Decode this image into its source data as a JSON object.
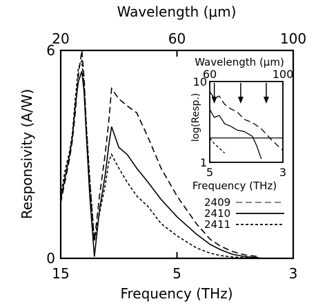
{
  "chart_data": {
    "type": "line",
    "main": {
      "xlabel": "Frequency  (THz)",
      "ylabel": "Responsivity  (A/W)",
      "top_xlabel": "Wavelength  (μm)",
      "ylim": [
        0,
        6
      ],
      "xlim": [
        15,
        3
      ],
      "x_scale": "reciprocal",
      "x_ticks": [
        15,
        5,
        3
      ],
      "y_ticks": [
        0,
        6
      ],
      "top_ticks": [
        20,
        60,
        100
      ],
      "top_tick_labels": [
        "20",
        "60",
        "100"
      ],
      "series": [
        {
          "name": "2409",
          "style": "long-dash",
          "x": [
            15,
            14,
            13,
            12.5,
            12,
            11.5,
            11,
            10.7,
            10.4,
            10.0,
            9.5,
            9.0,
            8.5,
            8.2,
            8.0,
            7.5,
            7.0,
            6.5,
            6.0,
            5.5,
            5.0,
            4.5,
            4.2,
            4.0,
            3.8,
            3.6,
            3.4
          ],
          "y": [
            1.6,
            2.2,
            2.9,
            3.4,
            4.2,
            5.3,
            6.0,
            5.2,
            3.7,
            2.2,
            0.5,
            1.8,
            3.0,
            4.0,
            4.9,
            4.6,
            4.4,
            4.2,
            3.5,
            2.6,
            1.8,
            1.0,
            0.55,
            0.35,
            0.2,
            0.1,
            0.05
          ]
        },
        {
          "name": "2410",
          "style": "solid",
          "x": [
            15,
            14,
            13,
            12.5,
            12,
            11.5,
            11,
            10.7,
            10.4,
            10.0,
            9.5,
            9.0,
            8.5,
            8.2,
            8.0,
            7.5,
            7.0,
            6.5,
            6.0,
            5.5,
            5.0,
            4.5,
            4.2,
            4.0,
            3.8,
            3.6,
            3.4
          ],
          "y": [
            1.7,
            2.3,
            3.0,
            3.5,
            4.4,
            5.1,
            5.4,
            4.8,
            3.5,
            1.8,
            0.05,
            1.4,
            2.4,
            3.3,
            3.8,
            3.2,
            3.0,
            2.6,
            2.2,
            1.7,
            1.2,
            0.7,
            0.4,
            0.25,
            0.12,
            0.05,
            0.02
          ]
        },
        {
          "name": "2411",
          "style": "short-dash",
          "x": [
            15,
            14,
            13,
            12.5,
            12,
            11.5,
            11,
            10.7,
            10.4,
            10.0,
            9.5,
            9.0,
            8.5,
            8.2,
            8.0,
            7.5,
            7.0,
            6.5,
            6.0,
            5.5,
            5.0,
            4.5,
            4.2,
            4.0,
            3.8,
            3.6,
            3.4
          ],
          "y": [
            1.8,
            2.5,
            3.1,
            3.6,
            4.6,
            5.5,
            5.7,
            5.0,
            3.8,
            2.3,
            0.5,
            1.3,
            2.1,
            2.8,
            3.0,
            2.6,
            2.2,
            1.8,
            1.5,
            1.0,
            0.65,
            0.3,
            0.15,
            0.08,
            0.04,
            0.02,
            0.01
          ]
        }
      ]
    },
    "inset": {
      "xlabel": "Frequency  (THz)",
      "ylabel": "log(Resp.)",
      "top_xlabel": "Wavelength  (μm)",
      "x_ticks": [
        5,
        3
      ],
      "y_ticks": [
        1,
        10
      ],
      "top_ticks": [
        60,
        100
      ],
      "y_scale": "log",
      "ylim": [
        1,
        10
      ],
      "xlim": [
        5,
        3
      ],
      "arrows_at_x": [
        4.8,
        3.9,
        3.3
      ],
      "hline_y": 2,
      "series": [
        {
          "name": "2409",
          "style": "long-dash",
          "x": [
            5.0,
            4.8,
            4.6,
            4.4,
            4.2,
            4.0,
            3.8,
            3.6,
            3.4,
            3.2,
            3.0
          ],
          "y": [
            7.5,
            6.2,
            6.6,
            5.2,
            4.6,
            4.2,
            3.4,
            3.1,
            2.6,
            1.9,
            1.4
          ]
        },
        {
          "name": "2410",
          "style": "solid",
          "x": [
            5.0,
            4.8,
            4.6,
            4.4,
            4.2,
            4.0,
            3.8,
            3.6,
            3.5,
            3.4
          ],
          "y": [
            4.5,
            3.6,
            3.8,
            3.0,
            2.8,
            2.5,
            2.4,
            2.1,
            1.6,
            1.1
          ]
        },
        {
          "name": "2411",
          "style": "short-dash",
          "x": [
            5.0,
            4.8,
            4.6,
            4.5,
            4.4
          ],
          "y": [
            2.0,
            1.7,
            1.5,
            1.4,
            1.3
          ]
        }
      ]
    },
    "legend": {
      "placement": "right-middle",
      "entries": [
        "2409",
        "2410",
        "2411"
      ]
    }
  }
}
